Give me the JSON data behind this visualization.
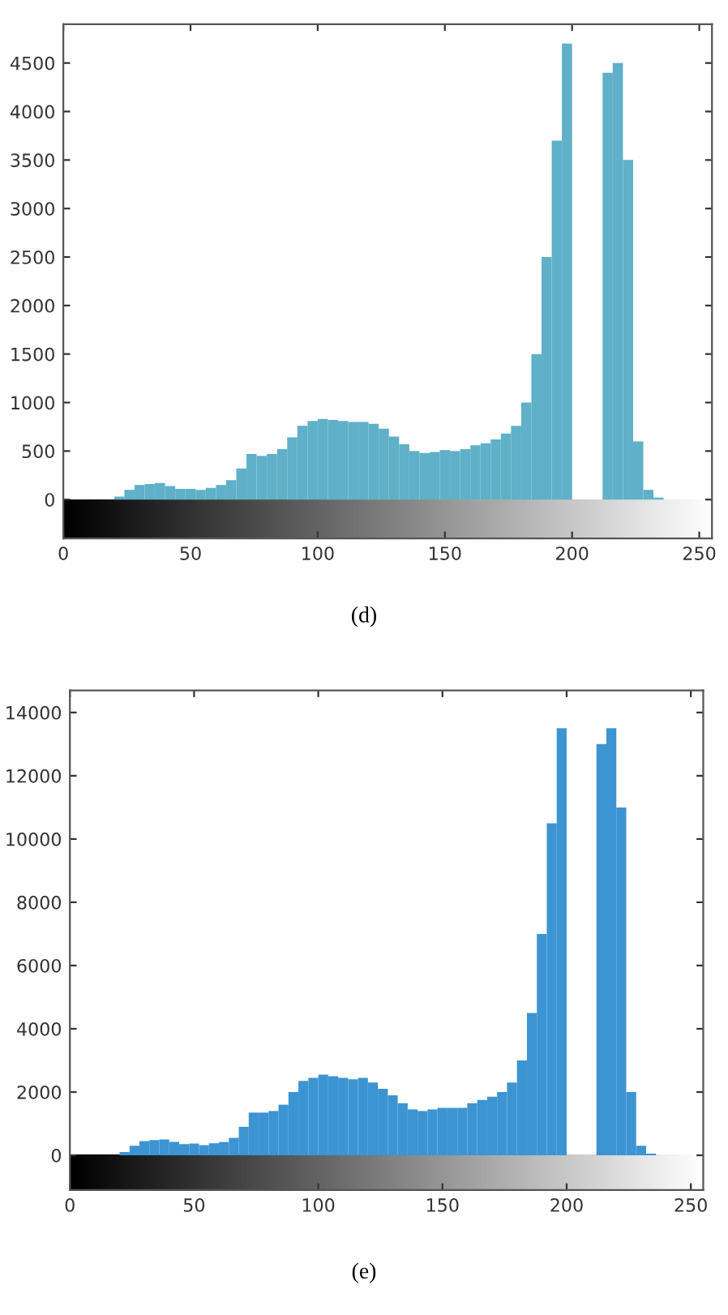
{
  "chart_data": [
    {
      "type": "histogram",
      "annotations": [
        "(d)"
      ],
      "color": "#5fb0c8",
      "grid": false,
      "bins": [
        0,
        4,
        8,
        12,
        16,
        20,
        24,
        28,
        32,
        36,
        40,
        44,
        48,
        52,
        56,
        60,
        64,
        68,
        72,
        76,
        80,
        84,
        88,
        92,
        96,
        100,
        104,
        108,
        112,
        116,
        120,
        124,
        128,
        132,
        136,
        140,
        144,
        148,
        152,
        156,
        160,
        164,
        168,
        172,
        176,
        180,
        184,
        188,
        192,
        196,
        200,
        204,
        208,
        212,
        216,
        220,
        224,
        228,
        232,
        236,
        240,
        244,
        248,
        252,
        256
      ],
      "values": [
        0,
        0,
        0,
        0,
        0,
        30,
        100,
        150,
        160,
        170,
        140,
        110,
        110,
        100,
        120,
        150,
        200,
        320,
        470,
        450,
        470,
        520,
        640,
        760,
        810,
        830,
        820,
        810,
        800,
        800,
        780,
        730,
        650,
        570,
        500,
        480,
        490,
        510,
        500,
        520,
        560,
        580,
        620,
        680,
        760,
        1000,
        1500,
        2500,
        3700,
        4700,
        null,
        null,
        null,
        4400,
        4500,
        3500,
        600,
        100,
        20,
        0,
        0,
        0,
        0,
        0
      ],
      "xlim": [
        0,
        255
      ],
      "ylim": [
        -400,
        4900
      ],
      "xticks": [
        0,
        50,
        100,
        150,
        200,
        250
      ],
      "yticks": [
        0,
        500,
        1000,
        1500,
        2000,
        2500,
        3000,
        3500,
        4000,
        4500
      ]
    },
    {
      "type": "histogram",
      "annotations": [
        "(e)"
      ],
      "color": "#3c94d2",
      "grid": false,
      "bins": [
        0,
        4,
        8,
        12,
        16,
        20,
        24,
        28,
        32,
        36,
        40,
        44,
        48,
        52,
        56,
        60,
        64,
        68,
        72,
        76,
        80,
        84,
        88,
        92,
        96,
        100,
        104,
        108,
        112,
        116,
        120,
        124,
        128,
        132,
        136,
        140,
        144,
        148,
        152,
        156,
        160,
        164,
        168,
        172,
        176,
        180,
        184,
        188,
        192,
        196,
        200,
        204,
        208,
        212,
        216,
        220,
        224,
        228,
        232,
        236,
        240,
        244,
        248,
        252,
        256
      ],
      "values": [
        0,
        0,
        0,
        0,
        0,
        100,
        300,
        450,
        480,
        500,
        420,
        350,
        370,
        320,
        380,
        420,
        550,
        900,
        1350,
        1350,
        1400,
        1600,
        2000,
        2350,
        2450,
        2550,
        2500,
        2450,
        2400,
        2450,
        2300,
        2100,
        1900,
        1650,
        1450,
        1400,
        1450,
        1500,
        1500,
        1500,
        1650,
        1750,
        1850,
        2000,
        2300,
        3000,
        4500,
        7000,
        10500,
        13500,
        null,
        null,
        null,
        13000,
        13500,
        11000,
        2000,
        300,
        50,
        0,
        0,
        0,
        0,
        0
      ],
      "xlim": [
        0,
        255
      ],
      "ylim": [
        -1100,
        14700
      ],
      "xticks": [
        0,
        50,
        100,
        150,
        200,
        250
      ],
      "yticks": [
        0,
        2000,
        4000,
        6000,
        8000,
        10000,
        12000,
        14000
      ]
    }
  ]
}
